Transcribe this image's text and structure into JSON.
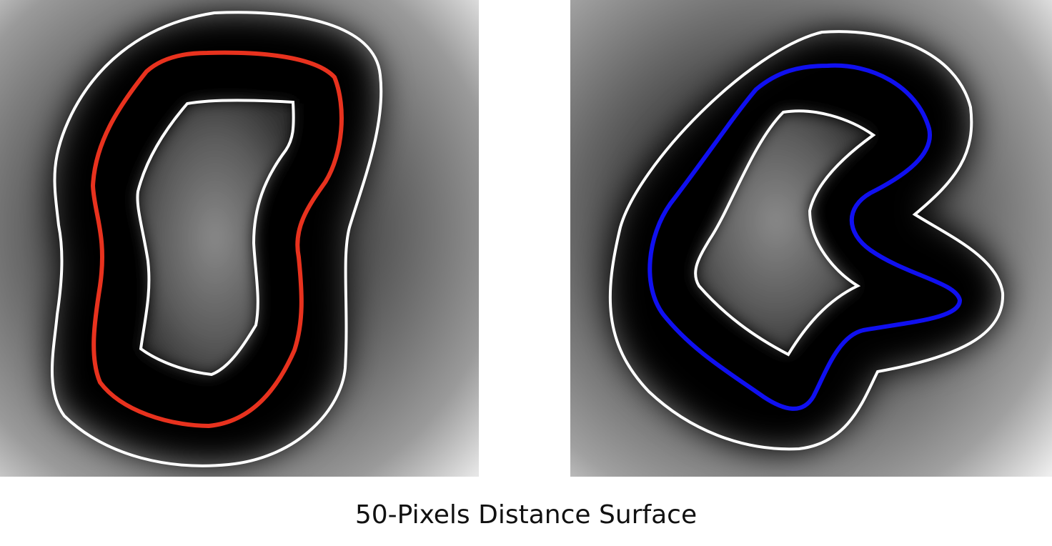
{
  "caption": "50-Pixels Distance Surface",
  "colors": {
    "left_contour": "#e8321e",
    "right_contour": "#1010f0",
    "offset_contours": "#ffffff",
    "surface_background": "#000000"
  },
  "panels": [
    {
      "id": "left",
      "contour_color_key": "left_contour"
    },
    {
      "id": "right",
      "contour_color_key": "right_contour"
    }
  ]
}
